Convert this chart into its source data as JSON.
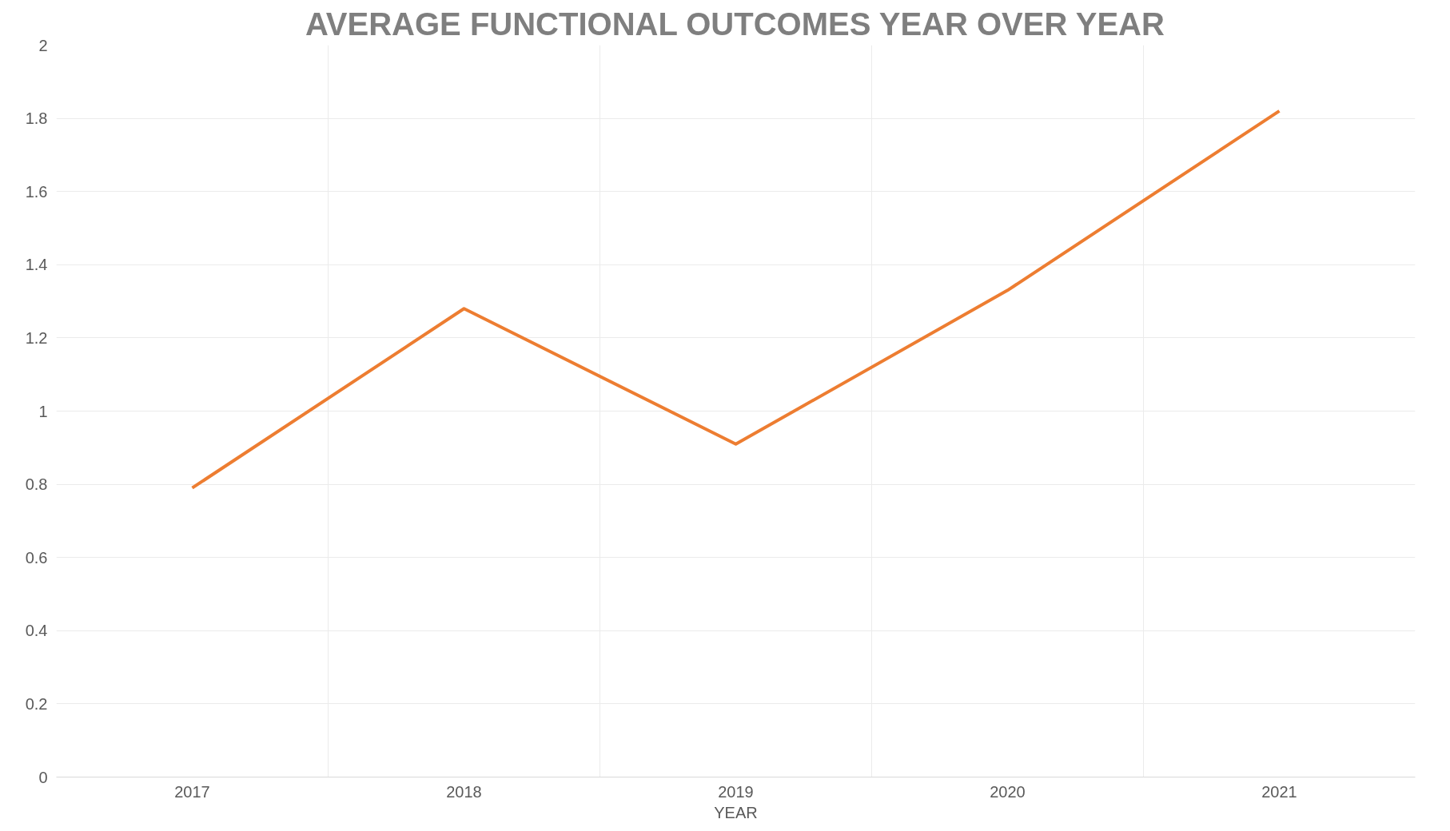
{
  "chart_data": {
    "type": "line",
    "title": "AVERAGE FUNCTIONAL OUTCOMES YEAR OVER YEAR",
    "xlabel": "YEAR",
    "categories": [
      "2017",
      "2018",
      "2019",
      "2020",
      "2021"
    ],
    "series": [
      {
        "color": "#ed7d31",
        "values": [
          0.79,
          1.28,
          0.91,
          1.33,
          1.82
        ]
      }
    ],
    "ylim": [
      0,
      2
    ],
    "yticks": [
      0,
      {
        "value": 0.2,
        "label": "0.2"
      },
      {
        "value": 0.4,
        "label": "0.4"
      },
      {
        "value": 0.6,
        "label": "0.6"
      },
      {
        "value": 0.8,
        "label": "0.8"
      },
      1,
      {
        "value": 1.2,
        "label": "1.2"
      },
      {
        "value": 1.4,
        "label": "1.4"
      },
      {
        "value": 1.6,
        "label": "1.6"
      },
      {
        "value": 1.8,
        "label": "1.8"
      },
      2
    ],
    "grid": true,
    "marker": "none",
    "line_style": "solid"
  }
}
